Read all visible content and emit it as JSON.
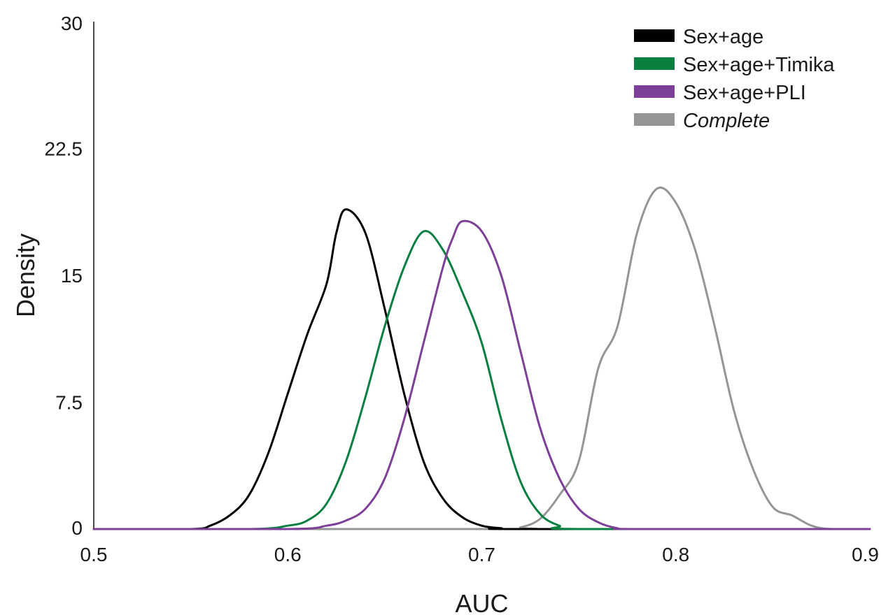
{
  "chart_data": {
    "type": "line",
    "title": "",
    "xlabel": "AUC",
    "ylabel": "Density",
    "xlim": [
      0.5,
      0.9
    ],
    "ylim": [
      0,
      30
    ],
    "x_ticks": [
      "0.5",
      "0.6",
      "0.7",
      "0.8",
      "0.9"
    ],
    "y_ticks": [
      "0",
      "7.5",
      "15",
      "22.5",
      "30"
    ],
    "grid": false,
    "legend_position": "top-right",
    "series": [
      {
        "name": "Sex+age",
        "color": "#000000",
        "italic": false,
        "points": [
          [
            0.5,
            0
          ],
          [
            0.55,
            0
          ],
          [
            0.56,
            0.2
          ],
          [
            0.57,
            0.8
          ],
          [
            0.58,
            2.0
          ],
          [
            0.59,
            4.5
          ],
          [
            0.6,
            8.0
          ],
          [
            0.61,
            11.5
          ],
          [
            0.62,
            14.5
          ],
          [
            0.625,
            17.5
          ],
          [
            0.63,
            18.9
          ],
          [
            0.64,
            17.5
          ],
          [
            0.65,
            13.0
          ],
          [
            0.66,
            8.0
          ],
          [
            0.67,
            4.0
          ],
          [
            0.68,
            1.8
          ],
          [
            0.69,
            0.7
          ],
          [
            0.7,
            0.2
          ],
          [
            0.71,
            0.05
          ],
          [
            0.72,
            0
          ],
          [
            0.9,
            0
          ]
        ]
      },
      {
        "name": "Sex+age+Timika",
        "color": "#0a8040",
        "italic": false,
        "points": [
          [
            0.5,
            0
          ],
          [
            0.58,
            0
          ],
          [
            0.6,
            0.2
          ],
          [
            0.61,
            0.5
          ],
          [
            0.62,
            1.5
          ],
          [
            0.63,
            4.0
          ],
          [
            0.64,
            7.8
          ],
          [
            0.65,
            12.0
          ],
          [
            0.66,
            15.5
          ],
          [
            0.67,
            17.6
          ],
          [
            0.68,
            16.5
          ],
          [
            0.69,
            14.0
          ],
          [
            0.7,
            11.0
          ],
          [
            0.71,
            6.5
          ],
          [
            0.72,
            2.8
          ],
          [
            0.73,
            0.9
          ],
          [
            0.74,
            0.2
          ],
          [
            0.75,
            0
          ],
          [
            0.9,
            0
          ]
        ]
      },
      {
        "name": "Sex+age+PLI",
        "color": "#7d3f98",
        "italic": false,
        "points": [
          [
            0.5,
            0
          ],
          [
            0.6,
            0
          ],
          [
            0.62,
            0.2
          ],
          [
            0.63,
            0.5
          ],
          [
            0.64,
            1.2
          ],
          [
            0.65,
            3.0
          ],
          [
            0.66,
            6.5
          ],
          [
            0.67,
            11.0
          ],
          [
            0.68,
            15.5
          ],
          [
            0.685,
            17.2
          ],
          [
            0.69,
            18.2
          ],
          [
            0.7,
            17.6
          ],
          [
            0.71,
            15.0
          ],
          [
            0.72,
            10.5
          ],
          [
            0.73,
            6.0
          ],
          [
            0.74,
            3.0
          ],
          [
            0.75,
            1.2
          ],
          [
            0.76,
            0.4
          ],
          [
            0.77,
            0.05
          ],
          [
            0.78,
            0
          ],
          [
            0.9,
            0
          ]
        ]
      },
      {
        "name": "Complete",
        "color": "#959595",
        "italic": true,
        "points": [
          [
            0.5,
            0
          ],
          [
            0.71,
            0
          ],
          [
            0.72,
            0.1
          ],
          [
            0.73,
            0.6
          ],
          [
            0.74,
            2.0
          ],
          [
            0.75,
            4.0
          ],
          [
            0.76,
            9.5
          ],
          [
            0.77,
            12.0
          ],
          [
            0.78,
            17.5
          ],
          [
            0.79,
            20.1
          ],
          [
            0.8,
            19.3
          ],
          [
            0.81,
            16.5
          ],
          [
            0.82,
            12.0
          ],
          [
            0.83,
            7.0
          ],
          [
            0.84,
            3.5
          ],
          [
            0.85,
            1.3
          ],
          [
            0.86,
            0.8
          ],
          [
            0.87,
            0.2
          ],
          [
            0.88,
            0
          ],
          [
            0.9,
            0
          ]
        ]
      }
    ]
  }
}
